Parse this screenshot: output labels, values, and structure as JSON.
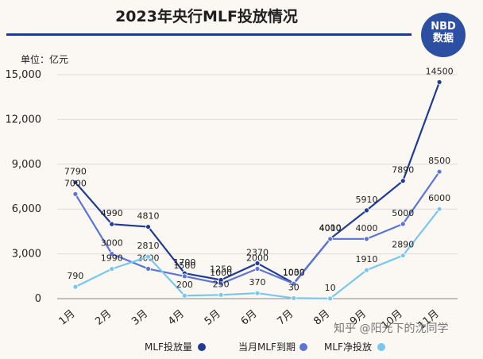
{
  "title": "2023年央行MLF投放情况",
  "logo": {
    "line1": "NBD",
    "line2": "数据"
  },
  "unit_label": "单位：亿元",
  "watermark_text": "知乎 @阳光下的沈同学",
  "chart_data": {
    "type": "line",
    "title": "2023年央行MLF投放情况",
    "ylabel": "单位：亿元",
    "ylim": [
      0,
      15000
    ],
    "yticks": [
      0,
      3000,
      6000,
      9000,
      12000,
      15000
    ],
    "ytick_labels": [
      "0",
      "3,000",
      "6,000",
      "9,000",
      "12,000",
      "15,000"
    ],
    "categories": [
      "1月",
      "2月",
      "3月",
      "4月",
      "5月",
      "6月",
      "7月",
      "8月",
      "9月",
      "10月",
      "11月"
    ],
    "grid": true,
    "legend_position": "bottom",
    "series": [
      {
        "name": "MLF投放量",
        "color": "#1f3b96",
        "values": [
          7790,
          4990,
          4810,
          1700,
          1250,
          2370,
          1030,
          4010,
          5910,
          7890,
          14500
        ],
        "labels": [
          "7790",
          "4990",
          "4810",
          "1700",
          "1250",
          "2370",
          "1030",
          "4010",
          "5910",
          "7890",
          "14500"
        ]
      },
      {
        "name": "当月MLF到期",
        "color": "#5b74d6",
        "values": [
          7000,
          3000,
          2000,
          1500,
          1000,
          2000,
          1000,
          4000,
          4000,
          5000,
          8500
        ],
        "labels": [
          "7000",
          "3000",
          "2000",
          "1500",
          "1000",
          "2000",
          "1000",
          "4000",
          "4000",
          "5000",
          "8500"
        ]
      },
      {
        "name": "MLF净投放",
        "color": "#79c6ee",
        "values": [
          790,
          1990,
          2810,
          200,
          250,
          370,
          30,
          10,
          1910,
          2890,
          6000
        ],
        "labels": [
          "790",
          "1990",
          "2810",
          "200",
          "250",
          "370",
          "30",
          "10",
          "1910",
          "2890",
          "6000"
        ]
      }
    ]
  }
}
